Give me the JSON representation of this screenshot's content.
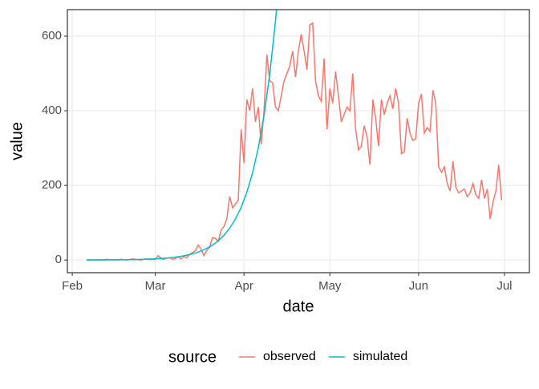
{
  "chart_data": {
    "type": "line",
    "x_label": "date",
    "y_label": "value",
    "legend_title": "source",
    "legend_position": "bottom",
    "xlim": [
      -1.7,
      159.7
    ],
    "xticks": [
      {
        "value": 0,
        "label": "Feb"
      },
      {
        "value": 29,
        "label": "Mar"
      },
      {
        "value": 60,
        "label": "Apr"
      },
      {
        "value": 90,
        "label": "May"
      },
      {
        "value": 121,
        "label": "Jun"
      },
      {
        "value": 151,
        "label": "Jul"
      }
    ],
    "ylim": [
      -34,
      671
    ],
    "yticks": [
      0,
      200,
      400,
      600
    ],
    "grid": true,
    "series": [
      {
        "name": "observed",
        "color": "#F8766D",
        "x": [
          5,
          6,
          7,
          8,
          9,
          10,
          11,
          12,
          13,
          14,
          15,
          16,
          17,
          18,
          19,
          20,
          21,
          22,
          23,
          24,
          25,
          26,
          27,
          28,
          29,
          30,
          31,
          32,
          33,
          34,
          35,
          36,
          37,
          38,
          39,
          40,
          41,
          42,
          43,
          44,
          45,
          46,
          47,
          48,
          49,
          50,
          51,
          52,
          53,
          54,
          55,
          56,
          57,
          58,
          59,
          60,
          61,
          62,
          63,
          64,
          65,
          66,
          67,
          68,
          69,
          70,
          71,
          72,
          73,
          74,
          75,
          76,
          77,
          78,
          79,
          80,
          81,
          82,
          83,
          84,
          85,
          86,
          87,
          88,
          89,
          90,
          91,
          92,
          93,
          94,
          95,
          96,
          97,
          98,
          99,
          100,
          101,
          102,
          103,
          104,
          105,
          106,
          107,
          108,
          109,
          110,
          111,
          112,
          113,
          114,
          115,
          116,
          117,
          118,
          119,
          120,
          121,
          122,
          123,
          124,
          125,
          126,
          127,
          128,
          129,
          130,
          131,
          132,
          133,
          134,
          135,
          136,
          137,
          138,
          139,
          140,
          141,
          142,
          143,
          144,
          145,
          146,
          147,
          148,
          149,
          150
        ],
        "values": [
          0,
          1,
          0,
          0,
          1,
          0,
          0,
          2,
          1,
          0,
          1,
          0,
          2,
          1,
          0,
          1,
          3,
          2,
          1,
          0,
          2,
          3,
          1,
          2,
          1,
          12,
          4,
          2,
          5,
          6,
          2,
          4,
          8,
          3,
          10,
          6,
          15,
          20,
          25,
          40,
          30,
          12,
          25,
          35,
          60,
          58,
          50,
          80,
          90,
          110,
          170,
          140,
          150,
          160,
          350,
          260,
          430,
          400,
          460,
          370,
          410,
          310,
          400,
          550,
          480,
          475,
          410,
          400,
          440,
          480,
          500,
          520,
          560,
          490,
          560,
          605,
          560,
          510,
          630,
          635,
          480,
          440,
          425,
          540,
          350,
          460,
          420,
          505,
          440,
          370,
          390,
          410,
          400,
          500,
          350,
          295,
          305,
          360,
          330,
          255,
          430,
          380,
          305,
          430,
          390,
          420,
          440,
          405,
          460,
          420,
          285,
          290,
          380,
          340,
          320,
          325,
          420,
          445,
          340,
          355,
          345,
          455,
          420,
          250,
          235,
          250,
          205,
          185,
          265,
          195,
          180,
          185,
          190,
          170,
          180,
          205,
          175,
          165,
          215,
          165,
          190,
          110,
          155,
          185,
          255,
          160
        ]
      },
      {
        "name": "simulated",
        "color": "#00BFC4",
        "x": [
          5,
          7,
          9,
          11,
          13,
          15,
          17,
          19,
          21,
          23,
          25,
          27,
          29,
          31,
          33,
          35,
          37,
          39,
          41,
          43,
          45,
          47,
          49,
          51,
          53,
          55,
          57,
          59,
          61,
          63,
          65,
          67,
          69,
          71,
          72
        ],
        "values": [
          0.2,
          0.2,
          0.3,
          0.3,
          0.4,
          0.6,
          0.7,
          0.9,
          1.2,
          1.5,
          1.9,
          2.5,
          3.2,
          4.2,
          5.3,
          6.9,
          8.8,
          11.4,
          14.6,
          18.8,
          24.2,
          31.1,
          40,
          51.5,
          66.3,
          85.3,
          109.7,
          141.1,
          181.6,
          233.6,
          300.5,
          386.6,
          497.4,
          640,
          726
        ]
      }
    ]
  }
}
